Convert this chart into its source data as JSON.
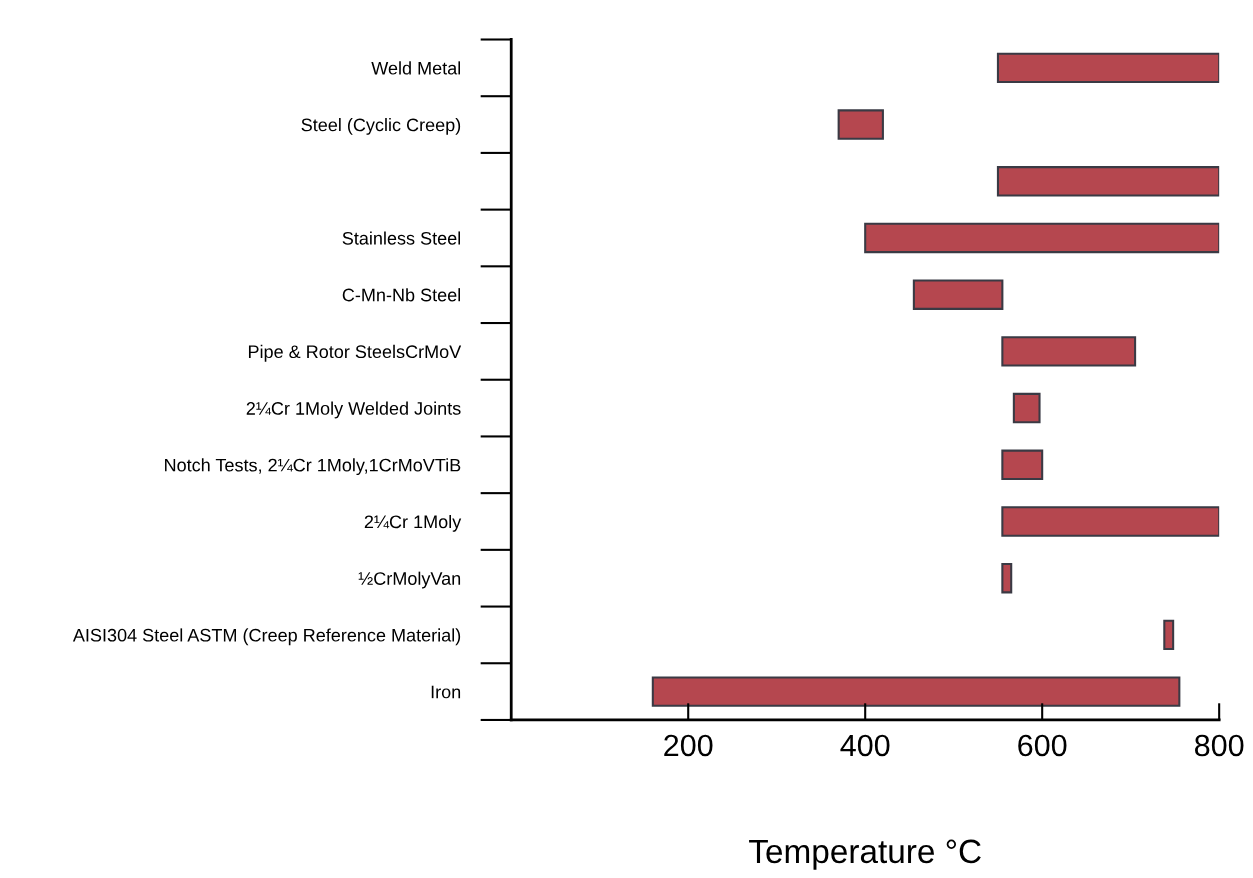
{
  "chart_data": {
    "type": "bar",
    "orientation": "horizontal",
    "xlabel": "Temperature °C",
    "categories": [
      "Weld Metal",
      "Steel (Cyclic Creep)",
      null,
      "Stainless Steel",
      "C-Mn-Nb Steel",
      "Pipe & Rotor SteelsCrMoV",
      "2¼Cr 1Moly Welded Joints",
      "Notch Tests, 2¼Cr 1Moly,1CrMoVTiB",
      "2¼Cr 1Moly",
      "½CrMolyVan",
      "AISI304 Steel ASTM (Creep Reference Material)",
      "Iron"
    ],
    "base": [
      550,
      370,
      550,
      400,
      455,
      555,
      568,
      555,
      555,
      555,
      738,
      160
    ],
    "values": [
      250,
      50,
      250,
      400,
      100,
      150,
      29,
      45,
      245,
      10,
      10,
      595
    ],
    "color": "#b5474f",
    "xlim": [
      0,
      800
    ],
    "xticks": [
      200,
      400,
      600,
      800
    ],
    "grid": false
  }
}
